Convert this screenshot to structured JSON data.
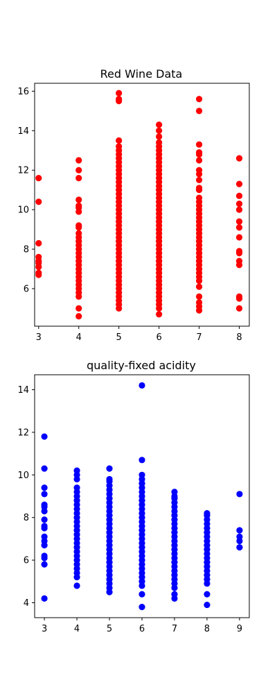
{
  "chart_data": [
    {
      "type": "scatter",
      "title": "Red Wine Data",
      "xlabel": "",
      "ylabel": "",
      "color": "#ff0000",
      "xlim": [
        2.9,
        8.25
      ],
      "ylim": [
        4.1,
        16.4
      ],
      "xticks": [
        3,
        4,
        5,
        6,
        7,
        8
      ],
      "yticks": [
        6,
        8,
        10,
        12,
        14,
        16
      ],
      "grid": false,
      "points_by_x": [
        {
          "x": 3,
          "y": [
            6.7,
            6.8,
            7.1,
            7.3,
            7.4,
            7.6,
            8.3,
            10.4,
            11.6
          ]
        },
        {
          "x": 4,
          "y": [
            4.6,
            5.0,
            5.6,
            5.8,
            6.0,
            6.2,
            6.4,
            6.6,
            6.8,
            7.0,
            7.2,
            7.4,
            7.6,
            7.8,
            8.0,
            8.2,
            8.4,
            8.6,
            8.8,
            9.1,
            9.2,
            9.9,
            10.1,
            10.2,
            10.5,
            11.6,
            12.0,
            12.5
          ]
        },
        {
          "x": 5,
          "y": [
            5.0,
            5.2,
            5.4,
            5.6,
            5.8,
            6.0,
            6.2,
            6.4,
            6.6,
            6.8,
            7.0,
            7.2,
            7.4,
            7.6,
            7.8,
            8.0,
            8.2,
            8.4,
            8.6,
            8.8,
            9.0,
            9.2,
            9.4,
            9.6,
            9.8,
            10.0,
            10.2,
            10.4,
            10.6,
            10.8,
            11.0,
            11.2,
            11.4,
            11.6,
            11.8,
            12.0,
            12.2,
            12.4,
            12.6,
            12.8,
            13.0,
            13.2,
            13.5,
            15.5,
            15.6,
            15.9
          ]
        },
        {
          "x": 6,
          "y": [
            4.7,
            5.0,
            5.2,
            5.4,
            5.6,
            5.8,
            6.0,
            6.2,
            6.4,
            6.6,
            6.8,
            7.0,
            7.2,
            7.4,
            7.6,
            7.8,
            8.0,
            8.2,
            8.4,
            8.6,
            8.8,
            9.0,
            9.2,
            9.4,
            9.6,
            9.8,
            10.0,
            10.2,
            10.4,
            10.6,
            10.8,
            11.0,
            11.2,
            11.4,
            11.6,
            11.8,
            12.0,
            12.2,
            12.4,
            12.6,
            12.8,
            13.0,
            13.2,
            13.4,
            13.7,
            14.0,
            14.3
          ]
        },
        {
          "x": 7,
          "y": [
            4.9,
            5.1,
            5.3,
            5.6,
            6.1,
            6.4,
            6.6,
            6.8,
            7.0,
            7.2,
            7.4,
            7.6,
            7.8,
            8.0,
            8.2,
            8.4,
            8.6,
            8.8,
            9.0,
            9.2,
            9.4,
            9.6,
            9.8,
            10.0,
            10.2,
            10.4,
            10.6,
            11.0,
            11.1,
            11.5,
            11.8,
            12.0,
            12.5,
            12.8,
            12.9,
            13.3,
            15.0,
            15.6
          ]
        },
        {
          "x": 8,
          "y": [
            5.0,
            5.5,
            5.6,
            7.2,
            7.4,
            7.8,
            7.9,
            8.6,
            9.1,
            9.4,
            10.0,
            10.3,
            10.7,
            11.3,
            12.6
          ]
        }
      ]
    },
    {
      "type": "scatter",
      "title": "quality-fixed acidity",
      "xlabel": "",
      "ylabel": "",
      "color": "#0000ff",
      "xlim": [
        2.7,
        9.3
      ],
      "ylim": [
        3.3,
        14.7
      ],
      "xticks": [
        3,
        4,
        5,
        6,
        7,
        8,
        9
      ],
      "yticks": [
        4,
        6,
        8,
        10,
        12,
        14
      ],
      "grid": false,
      "points_by_x": [
        {
          "x": 3,
          "y": [
            4.2,
            5.8,
            6.1,
            6.2,
            6.7,
            6.9,
            7.1,
            7.5,
            7.6,
            7.9,
            8.3,
            8.5,
            8.6,
            9.1,
            9.4,
            10.3,
            11.8
          ]
        },
        {
          "x": 4,
          "y": [
            4.8,
            5.2,
            5.4,
            5.6,
            5.8,
            6.0,
            6.2,
            6.4,
            6.6,
            6.8,
            7.0,
            7.2,
            7.4,
            7.6,
            7.8,
            8.0,
            8.2,
            8.4,
            8.6,
            8.8,
            9.0,
            9.2,
            9.4,
            9.8,
            10.0,
            10.2
          ]
        },
        {
          "x": 5,
          "y": [
            4.5,
            4.7,
            4.9,
            5.1,
            5.3,
            5.5,
            5.7,
            5.9,
            6.1,
            6.3,
            6.5,
            6.7,
            6.9,
            7.1,
            7.3,
            7.5,
            7.7,
            7.9,
            8.1,
            8.3,
            8.5,
            8.7,
            8.9,
            9.1,
            9.3,
            9.5,
            9.7,
            9.8,
            10.3
          ]
        },
        {
          "x": 6,
          "y": [
            3.8,
            4.4,
            4.8,
            5.0,
            5.2,
            5.4,
            5.6,
            5.8,
            6.0,
            6.2,
            6.4,
            6.6,
            6.8,
            7.0,
            7.2,
            7.4,
            7.6,
            7.8,
            8.0,
            8.2,
            8.4,
            8.6,
            8.8,
            9.0,
            9.2,
            9.4,
            9.6,
            9.8,
            10.0,
            10.7,
            14.2
          ]
        },
        {
          "x": 7,
          "y": [
            4.2,
            4.4,
            4.7,
            4.9,
            5.1,
            5.3,
            5.5,
            5.7,
            5.9,
            6.1,
            6.3,
            6.5,
            6.7,
            6.9,
            7.1,
            7.3,
            7.5,
            7.7,
            7.9,
            8.1,
            8.3,
            8.5,
            8.7,
            8.9,
            9.0,
            9.2
          ]
        },
        {
          "x": 8,
          "y": [
            3.9,
            4.4,
            4.9,
            5.1,
            5.3,
            5.5,
            5.7,
            5.9,
            6.1,
            6.3,
            6.5,
            6.7,
            6.9,
            7.1,
            7.3,
            7.5,
            7.7,
            7.9,
            8.1,
            8.2
          ]
        },
        {
          "x": 9,
          "y": [
            6.6,
            6.9,
            7.1,
            7.4,
            9.1
          ]
        }
      ]
    }
  ]
}
